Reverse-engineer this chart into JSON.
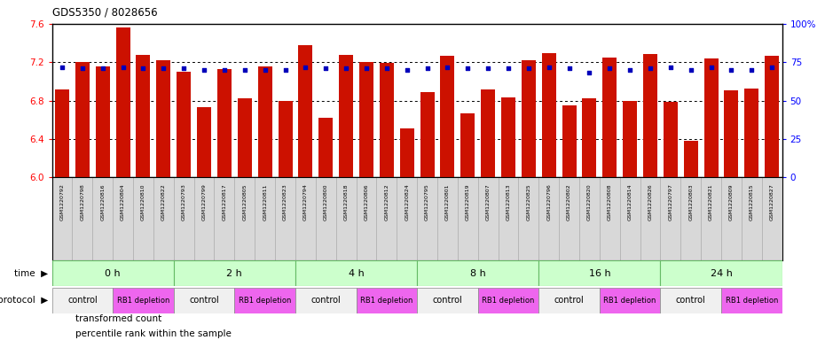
{
  "title": "GDS5350 / 8028656",
  "samples": [
    "GSM1220792",
    "GSM1220798",
    "GSM1220816",
    "GSM1220804",
    "GSM1220810",
    "GSM1220822",
    "GSM1220793",
    "GSM1220799",
    "GSM1220817",
    "GSM1220805",
    "GSM1220811",
    "GSM1220823",
    "GSM1220794",
    "GSM1220800",
    "GSM1220818",
    "GSM1220806",
    "GSM1220812",
    "GSM1220824",
    "GSM1220795",
    "GSM1220801",
    "GSM1220819",
    "GSM1220807",
    "GSM1220813",
    "GSM1220825",
    "GSM1220796",
    "GSM1220802",
    "GSM1220820",
    "GSM1220808",
    "GSM1220814",
    "GSM1220826",
    "GSM1220797",
    "GSM1220803",
    "GSM1220821",
    "GSM1220809",
    "GSM1220815",
    "GSM1220827"
  ],
  "bar_values": [
    6.92,
    7.2,
    7.16,
    7.56,
    7.28,
    7.22,
    7.1,
    6.73,
    7.13,
    6.82,
    7.16,
    6.8,
    7.38,
    6.62,
    7.28,
    7.2,
    7.19,
    6.51,
    6.89,
    7.27,
    6.67,
    6.92,
    6.83,
    7.22,
    7.3,
    6.75,
    6.82,
    7.25,
    6.8,
    7.29,
    6.79,
    6.38,
    7.24,
    6.91,
    6.93,
    7.27
  ],
  "percentile_values": [
    72,
    71,
    71,
    72,
    71,
    71,
    71,
    70,
    70,
    70,
    70,
    70,
    72,
    71,
    71,
    71,
    71,
    70,
    71,
    72,
    71,
    71,
    71,
    71,
    72,
    71,
    68,
    71,
    70,
    71,
    72,
    70,
    72,
    70,
    70,
    72
  ],
  "time_groups": [
    {
      "label": "0 h",
      "start": 0,
      "end": 6
    },
    {
      "label": "2 h",
      "start": 6,
      "end": 12
    },
    {
      "label": "4 h",
      "start": 12,
      "end": 18
    },
    {
      "label": "8 h",
      "start": 18,
      "end": 24
    },
    {
      "label": "16 h",
      "start": 24,
      "end": 30
    },
    {
      "label": "24 h",
      "start": 30,
      "end": 36
    }
  ],
  "protocol_groups": [
    {
      "label": "control",
      "start": 0,
      "end": 3,
      "color": "#f0f0f0"
    },
    {
      "label": "RB1 depletion",
      "start": 3,
      "end": 6,
      "color": "#ee66ee"
    },
    {
      "label": "control",
      "start": 6,
      "end": 9,
      "color": "#f0f0f0"
    },
    {
      "label": "RB1 depletion",
      "start": 9,
      "end": 12,
      "color": "#ee66ee"
    },
    {
      "label": "control",
      "start": 12,
      "end": 15,
      "color": "#f0f0f0"
    },
    {
      "label": "RB1 depletion",
      "start": 15,
      "end": 18,
      "color": "#ee66ee"
    },
    {
      "label": "control",
      "start": 18,
      "end": 21,
      "color": "#f0f0f0"
    },
    {
      "label": "RB1 depletion",
      "start": 21,
      "end": 24,
      "color": "#ee66ee"
    },
    {
      "label": "control",
      "start": 24,
      "end": 27,
      "color": "#f0f0f0"
    },
    {
      "label": "RB1 depletion",
      "start": 27,
      "end": 30,
      "color": "#ee66ee"
    },
    {
      "label": "control",
      "start": 30,
      "end": 33,
      "color": "#f0f0f0"
    },
    {
      "label": "RB1 depletion",
      "start": 33,
      "end": 36,
      "color": "#ee66ee"
    }
  ],
  "ylim_left": [
    6.0,
    7.6
  ],
  "ylim_right": [
    0,
    100
  ],
  "yticks_left": [
    6.0,
    6.4,
    6.8,
    7.2,
    7.6
  ],
  "yticks_right_vals": [
    0,
    25,
    50,
    75,
    100
  ],
  "yticks_right_labels": [
    "0",
    "25",
    "50",
    "75",
    "100%"
  ],
  "bar_color": "#cc1100",
  "dot_color": "#0000bb",
  "bar_baseline": 6.0,
  "time_row_color": "#ccffcc",
  "time_row_border": "#66bb66",
  "sample_label_bg": "#cccccc",
  "legend_bar_label": "transformed count",
  "legend_dot_label": "percentile rank within the sample",
  "fig_width": 9.3,
  "fig_height": 3.93,
  "dpi": 100
}
